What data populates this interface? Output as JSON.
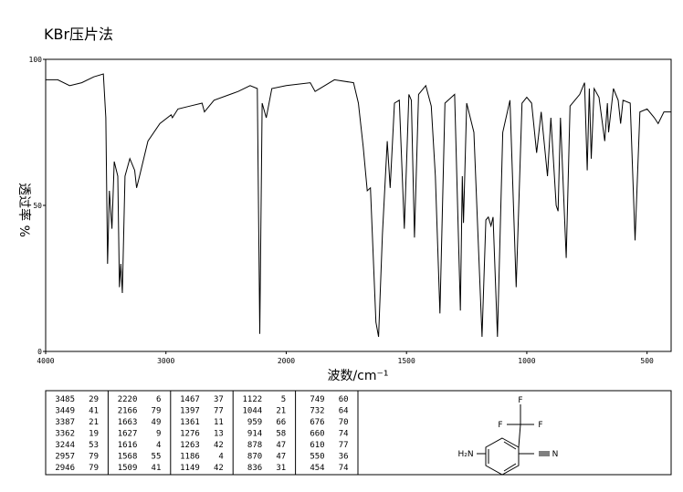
{
  "chart_data": {
    "type": "line",
    "title": "KBr压片法",
    "xlabel": "波数/cm⁻¹",
    "ylabel": "透过率 %",
    "xlim": [
      4000,
      400
    ],
    "x_break": 2000,
    "xticks": [
      4000,
      3000,
      2000,
      1500,
      1000,
      500
    ],
    "ylim": [
      0,
      100
    ],
    "yticks": [
      0,
      50,
      100
    ],
    "color": "#000000",
    "series": [
      {
        "name": null,
        "color": "#000000",
        "x": [
          4000,
          3900,
          3800,
          3700,
          3600,
          3520,
          3500,
          3485,
          3470,
          3449,
          3430,
          3400,
          3387,
          3375,
          3362,
          3340,
          3300,
          3260,
          3244,
          3220,
          3150,
          3050,
          2957,
          2946,
          2900,
          2800,
          2700,
          2680,
          2600,
          2400,
          2300,
          2240,
          2220,
          2200,
          2166,
          2120,
          2000,
          1900,
          1880,
          1800,
          1720,
          1700,
          1680,
          1663,
          1650,
          1627,
          1616,
          1600,
          1580,
          1568,
          1550,
          1530,
          1509,
          1490,
          1480,
          1467,
          1450,
          1420,
          1397,
          1380,
          1361,
          1340,
          1300,
          1276,
          1268,
          1263,
          1250,
          1220,
          1186,
          1170,
          1160,
          1149,
          1140,
          1122,
          1100,
          1070,
          1044,
          1020,
          1000,
          980,
          959,
          940,
          914,
          900,
          878,
          870,
          860,
          836,
          820,
          800,
          780,
          760,
          749,
          740,
          732,
          720,
          700,
          676,
          665,
          660,
          640,
          620,
          610,
          600,
          570,
          550,
          530,
          500,
          470,
          454,
          430,
          400
        ],
        "values": [
          93,
          93,
          91,
          92,
          94,
          95,
          80,
          30,
          55,
          42,
          65,
          60,
          22,
          30,
          20,
          60,
          66,
          62,
          56,
          60,
          72,
          78,
          81,
          80,
          83,
          84,
          85,
          82,
          86,
          89,
          91,
          90,
          6,
          85,
          80,
          90,
          91,
          92,
          89,
          93,
          92,
          85,
          70,
          55,
          56,
          10,
          5,
          40,
          72,
          56,
          85,
          86,
          42,
          88,
          86,
          39,
          88,
          91,
          84,
          60,
          13,
          85,
          88,
          14,
          60,
          44,
          85,
          75,
          5,
          45,
          46,
          43,
          46,
          5,
          75,
          86,
          22,
          85,
          87,
          85,
          68,
          82,
          60,
          80,
          50,
          48,
          80,
          32,
          84,
          86,
          88,
          92,
          62,
          90,
          66,
          90,
          87,
          72,
          85,
          75,
          90,
          86,
          78,
          86,
          85,
          38,
          82,
          83,
          80,
          78,
          82,
          82
        ]
      }
    ]
  },
  "table": {
    "columns": [
      [
        [
          3485,
          29
        ],
        [
          3449,
          41
        ],
        [
          3387,
          21
        ],
        [
          3362,
          19
        ],
        [
          3244,
          53
        ],
        [
          2957,
          79
        ],
        [
          2946,
          79
        ]
      ],
      [
        [
          2220,
          6
        ],
        [
          2166,
          79
        ],
        [
          1663,
          49
        ],
        [
          1627,
          9
        ],
        [
          1616,
          4
        ],
        [
          1568,
          55
        ],
        [
          1509,
          41
        ]
      ],
      [
        [
          1467,
          37
        ],
        [
          1397,
          77
        ],
        [
          1361,
          11
        ],
        [
          1276,
          13
        ],
        [
          1263,
          42
        ],
        [
          1186,
          4
        ],
        [
          1149,
          42
        ]
      ],
      [
        [
          1122,
          5
        ],
        [
          1044,
          21
        ],
        [
          959,
          66
        ],
        [
          914,
          58
        ],
        [
          878,
          47
        ],
        [
          870,
          47
        ],
        [
          836,
          31
        ]
      ],
      [
        [
          749,
          60
        ],
        [
          732,
          64
        ],
        [
          676,
          70
        ],
        [
          660,
          74
        ],
        [
          610,
          77
        ],
        [
          550,
          36
        ],
        [
          454,
          74
        ]
      ]
    ]
  },
  "structure": {
    "labels": [
      "F",
      "F",
      "F",
      "H₂N",
      "N"
    ]
  }
}
